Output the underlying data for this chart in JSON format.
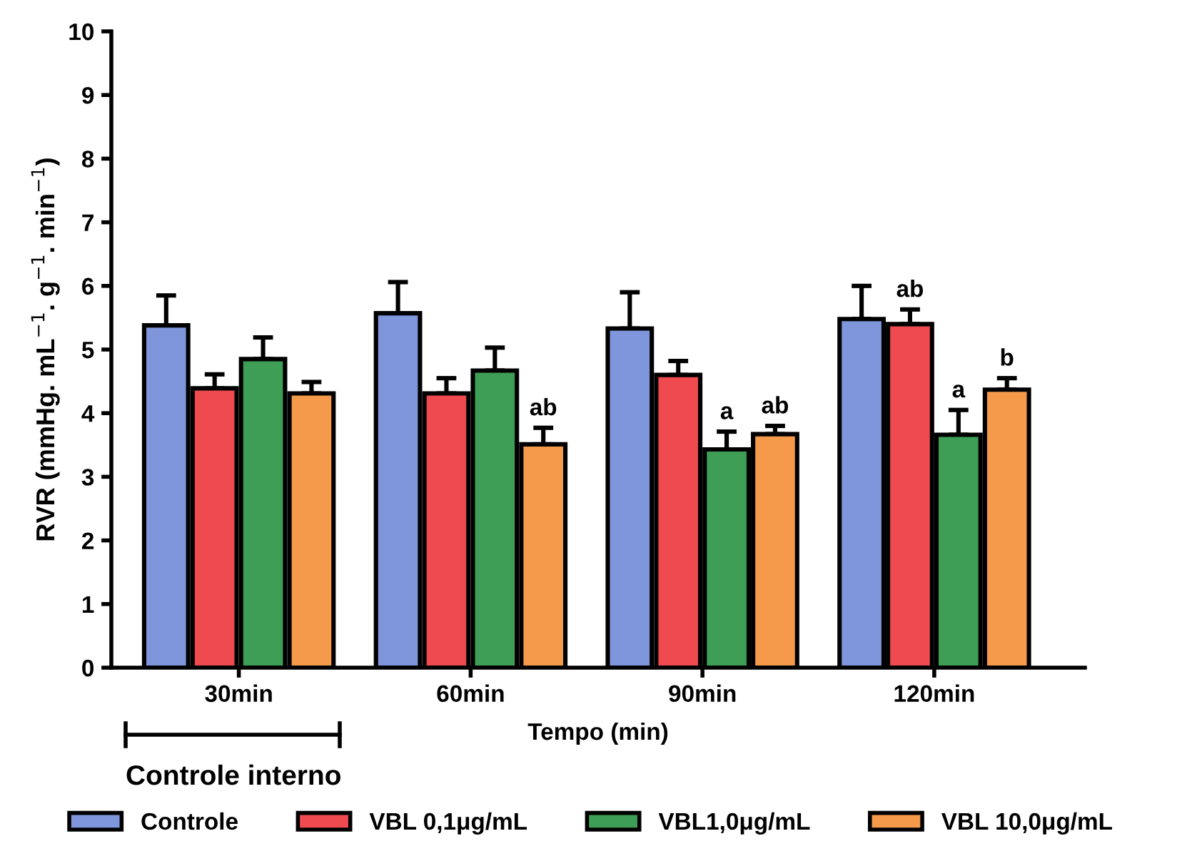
{
  "chart_data": {
    "type": "bar",
    "xlabel": "Tempo (min)",
    "ylabel": "RVR (mmHg. mL$^{−1}$. g$^{−1}$. min$^{−1}$)",
    "categories": [
      "30min",
      "60min",
      "90min",
      "120min"
    ],
    "series": [
      {
        "name": "Controle",
        "color": "#7f96dc",
        "values": [
          5.38,
          5.57,
          5.33,
          5.48
        ],
        "errors": [
          [
            5.38,
            5.85
          ],
          [
            5.57,
            6.06
          ],
          [
            5.33,
            5.9
          ],
          [
            5.48,
            6.0
          ]
        ]
      },
      {
        "name": "VBL 0,1μg/mL",
        "color": "#ee4a4f",
        "values": [
          4.39,
          4.31,
          4.6,
          5.4
        ],
        "errors": [
          [
            4.39,
            4.61
          ],
          [
            4.31,
            4.55
          ],
          [
            4.6,
            4.82
          ],
          [
            5.4,
            5.63
          ]
        ],
        "value_labels": [
          null,
          null,
          null,
          "ab"
        ]
      },
      {
        "name": "VBL1,0μg/mL",
        "color": "#3f9e55",
        "values": [
          4.85,
          4.67,
          3.43,
          3.66
        ],
        "errors": [
          [
            4.85,
            5.19
          ],
          [
            4.67,
            5.03
          ],
          [
            3.43,
            3.71
          ],
          [
            3.66,
            4.05
          ]
        ],
        "value_labels": [
          null,
          null,
          "a",
          "a"
        ]
      },
      {
        "name": "VBL 10,0μg/mL",
        "color": "#f59a4a",
        "values": [
          4.31,
          3.51,
          3.67,
          4.37
        ],
        "errors": [
          [
            4.31,
            4.49
          ],
          [
            3.51,
            3.77
          ],
          [
            3.67,
            3.8
          ],
          [
            4.37,
            4.55
          ]
        ],
        "value_labels": [
          null,
          "ab",
          "ab",
          "b"
        ]
      }
    ],
    "ylim": [
      0,
      10
    ],
    "yticks": [
      0,
      1,
      2,
      3,
      4,
      5,
      6,
      7,
      8,
      9,
      10
    ],
    "grid": false,
    "legend": "bottom",
    "annotations": [
      "Controle interno"
    ]
  }
}
